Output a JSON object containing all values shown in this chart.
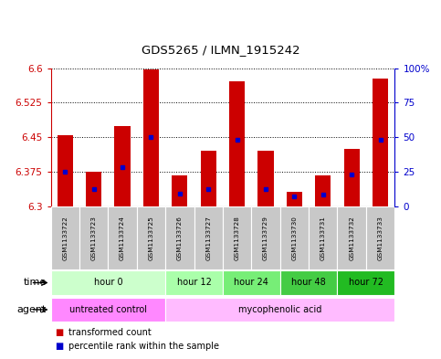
{
  "title": "GDS5265 / ILMN_1915242",
  "samples": [
    "GSM1133722",
    "GSM1133723",
    "GSM1133724",
    "GSM1133725",
    "GSM1133726",
    "GSM1133727",
    "GSM1133728",
    "GSM1133729",
    "GSM1133730",
    "GSM1133731",
    "GSM1133732",
    "GSM1133733"
  ],
  "bar_tops": [
    6.455,
    6.375,
    6.475,
    6.597,
    6.368,
    6.42,
    6.572,
    6.42,
    6.332,
    6.368,
    6.425,
    6.578
  ],
  "bar_bottoms": [
    6.3,
    6.3,
    6.3,
    6.3,
    6.3,
    6.3,
    6.3,
    6.3,
    6.3,
    6.3,
    6.3,
    6.3
  ],
  "blue_marker_y": [
    6.375,
    6.338,
    6.385,
    6.45,
    6.328,
    6.338,
    6.445,
    6.338,
    6.322,
    6.325,
    6.37,
    6.445
  ],
  "ylim": [
    6.3,
    6.6
  ],
  "yticks_left": [
    6.3,
    6.375,
    6.45,
    6.525,
    6.6
  ],
  "yticks_right_vals": [
    0,
    25,
    50,
    75,
    100
  ],
  "bar_color": "#cc0000",
  "blue_color": "#0000cc",
  "bar_width": 0.55,
  "bg_sample_row": "#c8c8c8",
  "time_groups": [
    {
      "label": "hour 0",
      "start": 0,
      "end": 3,
      "color": "#ccffcc"
    },
    {
      "label": "hour 12",
      "start": 4,
      "end": 5,
      "color": "#aaffaa"
    },
    {
      "label": "hour 24",
      "start": 6,
      "end": 7,
      "color": "#77ee77"
    },
    {
      "label": "hour 48",
      "start": 8,
      "end": 9,
      "color": "#44cc44"
    },
    {
      "label": "hour 72",
      "start": 10,
      "end": 11,
      "color": "#22bb22"
    }
  ],
  "agent_groups": [
    {
      "label": "untreated control",
      "start": 0,
      "end": 3,
      "color": "#ff88ff"
    },
    {
      "label": "mycophenolic acid",
      "start": 4,
      "end": 11,
      "color": "#ffbbff"
    }
  ],
  "legend_red_label": "transformed count",
  "legend_blue_label": "percentile rank within the sample",
  "left_axis_color": "#cc0000",
  "right_axis_color": "#0000cc"
}
